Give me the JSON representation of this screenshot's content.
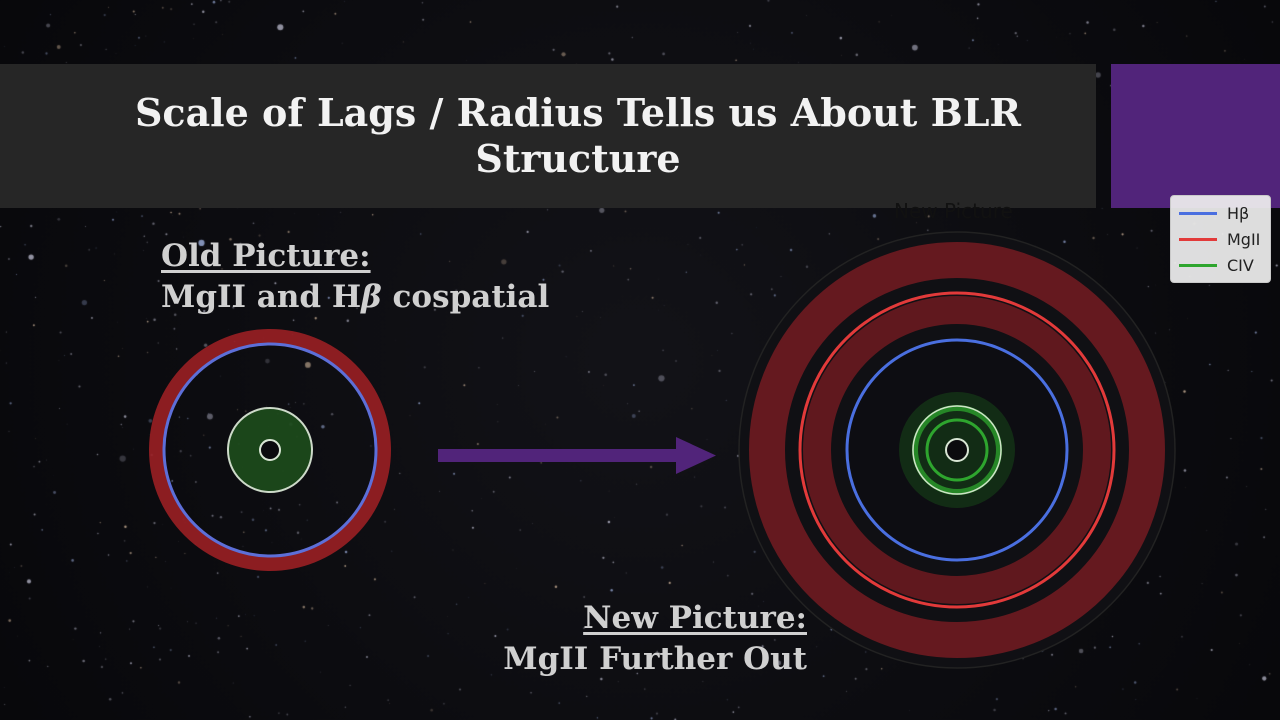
{
  "title": {
    "line1": "Scale of Lags / Radius Tells us About BLR",
    "line2": "Structure"
  },
  "old_picture": {
    "heading": "Old Picture:",
    "caption_prefix": "MgII and H",
    "caption_symbol": "β",
    "caption_suffix": " cospatial"
  },
  "new_picture": {
    "heading": "New Picture:",
    "caption": "MgII Further Out"
  },
  "figure_title": "New Picture",
  "legend": [
    {
      "label": "Hβ",
      "color": "#4a6fe0"
    },
    {
      "label": "MgII",
      "color": "#e23a3a"
    },
    {
      "label": "CIV",
      "color": "#2ea52e"
    }
  ],
  "colors": {
    "accent": "#51247a",
    "arrow": "#51247a",
    "title_bar": "#262626",
    "hbeta": "#4a6fe0",
    "mgii": "#e23a3a",
    "civ": "#2ea52e"
  },
  "icons": [
    "arrow-right-icon"
  ]
}
